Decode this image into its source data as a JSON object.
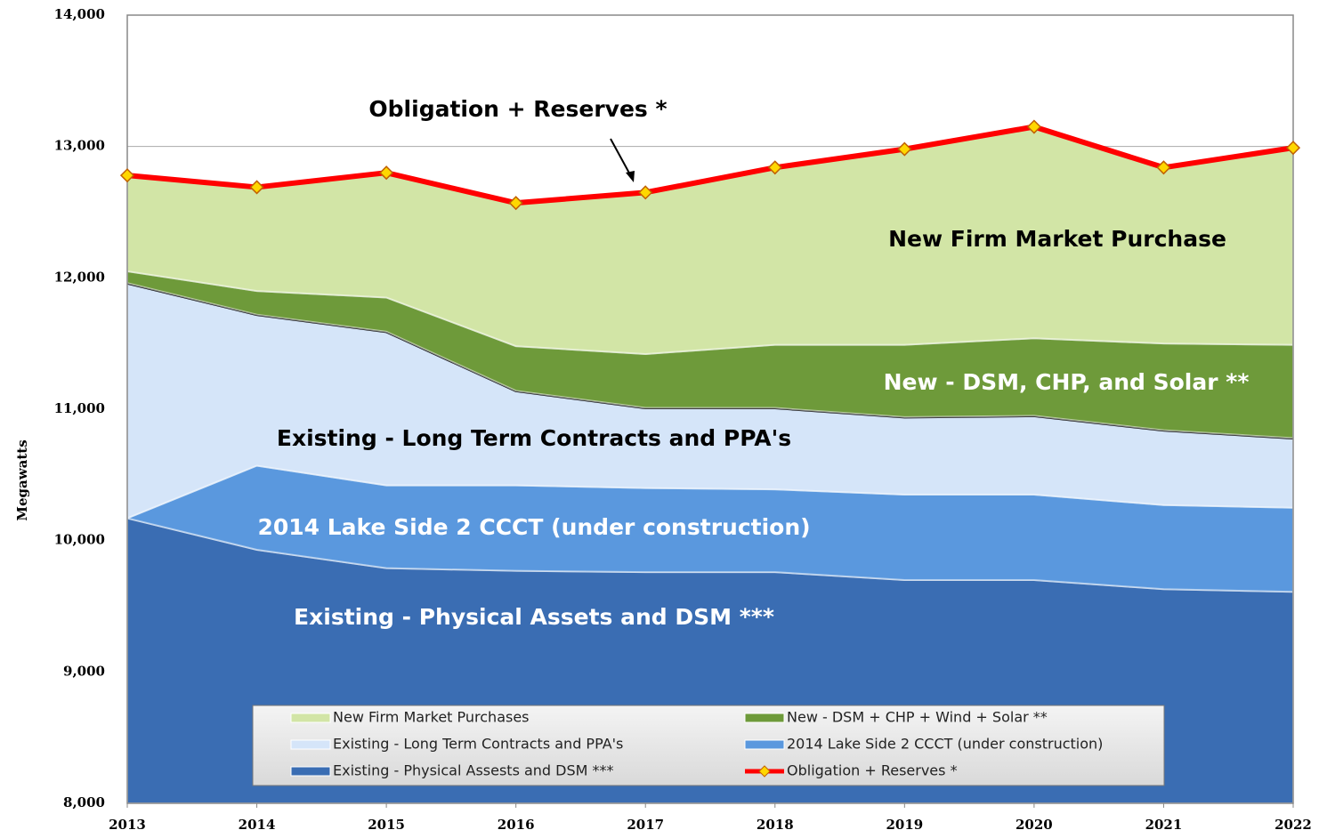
{
  "chart_data": {
    "type": "area",
    "y_label": "Megawatts",
    "x": [
      2013,
      2014,
      2015,
      2016,
      2017,
      2018,
      2019,
      2020,
      2021,
      2022
    ],
    "xlim": [
      2013,
      2022
    ],
    "xticks": [
      2013,
      2014,
      2015,
      2016,
      2017,
      2018,
      2019,
      2020,
      2021,
      2022
    ],
    "ylim": [
      8000,
      14000
    ],
    "yticks": [
      {
        "value": 8000,
        "label": "8,000"
      },
      {
        "value": 9000,
        "label": "9,000"
      },
      {
        "value": 10000,
        "label": "10,000"
      },
      {
        "value": 11000,
        "label": "11,000"
      },
      {
        "value": 12000,
        "label": "12,000"
      },
      {
        "value": 13000,
        "label": "13,000"
      },
      {
        "value": 14000,
        "label": "14,000"
      }
    ],
    "grid": true,
    "series": [
      {
        "name": "Existing - Physical Assests and DSM ***",
        "type": "area",
        "color": "#3a6db3",
        "values": [
          10170,
          9930,
          9790,
          9770,
          9760,
          9760,
          9700,
          9700,
          9630,
          9610
        ]
      },
      {
        "name": "2014 Lake Side 2 CCCT (under construction)",
        "type": "area",
        "color": "#5a98de",
        "values": [
          0,
          640,
          630,
          650,
          640,
          630,
          650,
          650,
          640,
          640
        ]
      },
      {
        "name": "Existing - Long Term Contracts and PPA's",
        "type": "area",
        "color": "#d5e5f9",
        "values": [
          1790,
          1150,
          1170,
          720,
          610,
          620,
          590,
          600,
          570,
          530
        ]
      },
      {
        "name": "New - DSM + CHP + Wind + Solar **",
        "type": "area",
        "color": "#6e9a3a",
        "values": [
          90,
          180,
          260,
          340,
          410,
          480,
          550,
          590,
          660,
          710
        ]
      },
      {
        "name": "New Firm Market Purchases",
        "type": "area",
        "color": "#d2e5a6",
        "values": [
          730,
          790,
          950,
          1090,
          1230,
          1350,
          1490,
          1610,
          1340,
          1500
        ]
      },
      {
        "name": "Obligation + Reserves *",
        "type": "line",
        "color": "#ff0000",
        "values": [
          12780,
          12690,
          12800,
          12570,
          12650,
          12840,
          12980,
          13150,
          12840,
          12990
        ]
      }
    ],
    "annotations": [
      {
        "text": "Obligation + Reserves *",
        "color": "#000000"
      },
      {
        "text": "New Firm Market Purchase",
        "color": "#000000"
      },
      {
        "text": "New - DSM, CHP, and Solar **",
        "color": "#ffffff"
      },
      {
        "text": "Existing - Long Term Contracts and PPA's",
        "color": "#000000"
      },
      {
        "text": "2014 Lake Side 2 CCCT (under construction)",
        "color": "#ffffff"
      },
      {
        "text": "Existing - Physical Assets and DSM ***",
        "color": "#ffffff"
      }
    ]
  }
}
